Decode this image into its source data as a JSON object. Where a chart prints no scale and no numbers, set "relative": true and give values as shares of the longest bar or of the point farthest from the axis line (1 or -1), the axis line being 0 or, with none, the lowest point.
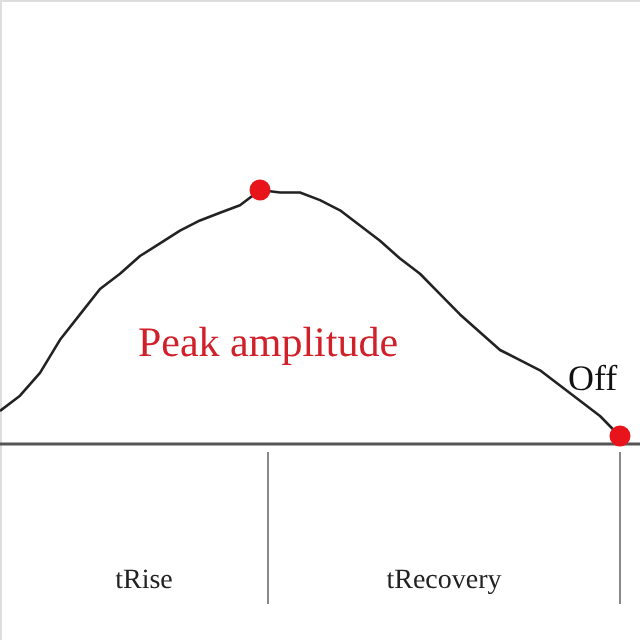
{
  "chart_data": {
    "type": "line",
    "relative": true,
    "categories": [
      null,
      null,
      null,
      null,
      null,
      null,
      null,
      null,
      null,
      null,
      null,
      null,
      null,
      null,
      null,
      null,
      null,
      null,
      null,
      null,
      null,
      null,
      null,
      null,
      null,
      null,
      null,
      null,
      null,
      null,
      null,
      null
    ],
    "series": [
      {
        "color": "#222222",
        "values": [
          0.13,
          0.19,
          0.28,
          0.41,
          0.51,
          0.61,
          0.67,
          0.74,
          0.79,
          0.84,
          0.88,
          0.91,
          0.94,
          1.0,
          0.99,
          0.99,
          0.96,
          0.92,
          0.86,
          0.8,
          0.73,
          0.67,
          0.59,
          0.51,
          0.44,
          0.37,
          0.33,
          0.29,
          0.23,
          0.17,
          0.11,
          0.03
        ]
      }
    ],
    "annotations": [
      "Peak amplitude",
      "Off",
      "tRise",
      "tRecovery"
    ]
  }
}
